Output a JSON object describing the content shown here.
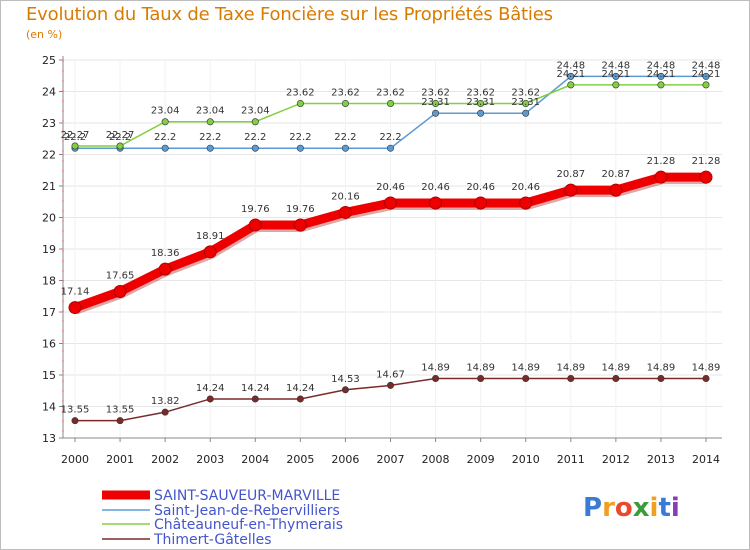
{
  "chart_data": {
    "type": "line",
    "title": "Evolution du Taux de Taxe Foncière sur les Propriétés Bâties",
    "ylabel": "(en %)",
    "xlabel": "",
    "ylim": [
      13,
      25
    ],
    "yticks": [
      13,
      14,
      15,
      16,
      17,
      18,
      19,
      20,
      21,
      22,
      23,
      24,
      25
    ],
    "x": [
      2000,
      2001,
      2002,
      2003,
      2004,
      2005,
      2006,
      2007,
      2008,
      2009,
      2010,
      2011,
      2012,
      2013,
      2014
    ],
    "series": [
      {
        "name": "SAINT-SAUVEUR-MARVILLE",
        "color": "#ee0000",
        "emphasis": true,
        "values": [
          17.14,
          17.65,
          18.36,
          18.91,
          19.76,
          19.76,
          20.16,
          20.46,
          20.46,
          20.46,
          20.46,
          20.87,
          20.87,
          21.28,
          21.28
        ]
      },
      {
        "name": "Saint-Jean-de-Rebervilliers",
        "color": "#5b9bd5",
        "emphasis": false,
        "values": [
          22.2,
          22.2,
          22.2,
          22.2,
          22.2,
          22.2,
          22.2,
          22.2,
          23.31,
          23.31,
          23.31,
          24.48,
          24.48,
          24.48,
          24.48
        ]
      },
      {
        "name": "Châteauneuf-en-Thymerais",
        "color": "#80d040",
        "emphasis": false,
        "values": [
          22.27,
          22.27,
          23.04,
          23.04,
          23.04,
          23.62,
          23.62,
          23.62,
          23.62,
          23.62,
          23.62,
          24.21,
          24.21,
          24.21,
          24.21
        ]
      },
      {
        "name": "Thimert-Gâtelles",
        "color": "#7a2a2a",
        "emphasis": false,
        "values": [
          13.55,
          13.55,
          13.82,
          14.24,
          14.24,
          14.24,
          14.53,
          14.67,
          14.89,
          14.89,
          14.89,
          14.89,
          14.89,
          14.89,
          14.89
        ]
      }
    ],
    "labels": {
      "SAINT-SAUVEUR-MARVILLE": [
        "17.14",
        "17.65",
        "18.36",
        "18.91",
        "19.76",
        "19.76",
        "20.16",
        "20.46",
        "20.46",
        "20.46",
        "20.46",
        "20.87",
        "20.87",
        "21.28",
        "21.28"
      ],
      "Saint-Jean-de-Rebervilliers": [
        "22.2",
        "22.2",
        "22.2",
        "22.2",
        "22.2",
        "22.2",
        "22.2",
        "22.2",
        "23.31",
        "23.31",
        "23.31",
        "24.48",
        "24.48",
        "24.48",
        "24.48"
      ],
      "Châteauneuf-en-Thymerais": [
        "22.27",
        "22.27",
        "23.04",
        "23.04",
        "23.04",
        "23.62",
        "23.62",
        "23.62",
        "23.62",
        "23.62",
        "23.62",
        "24.21",
        "24.21",
        "24.21",
        "24.21"
      ],
      "Thimert-Gâtelles": [
        "13.55",
        "13.55",
        "13.82",
        "14.24",
        "14.24",
        "14.24",
        "14.53",
        "14.67",
        "14.89",
        "14.89",
        "14.89",
        "14.89",
        "14.89",
        "14.89",
        "14.89"
      ]
    },
    "legend_position": "bottom-left"
  },
  "logo": {
    "text": "Proxiti"
  }
}
